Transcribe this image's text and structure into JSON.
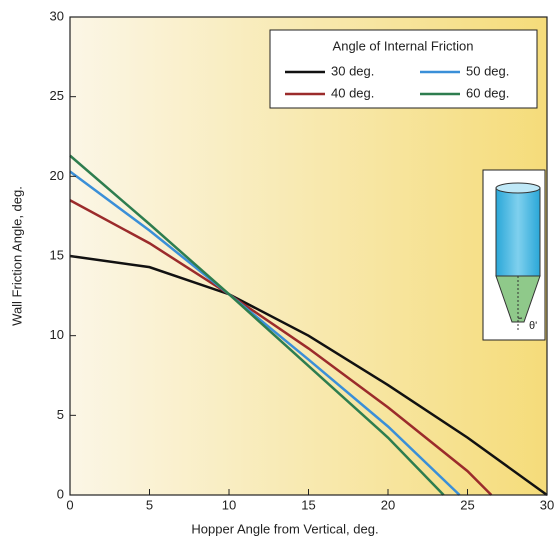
{
  "chart_data": {
    "type": "line",
    "xlabel": "Hopper Angle from Vertical, deg.",
    "ylabel": "Wall Friction Angle, deg.",
    "legend_title": "Angle of Internal Friction",
    "xlim": [
      0,
      30
    ],
    "xticks": [
      0,
      5,
      10,
      15,
      20,
      25,
      30
    ],
    "ylim": [
      0,
      30
    ],
    "yticks": [
      0,
      5,
      10,
      15,
      20,
      25,
      30
    ],
    "legend": "upper right",
    "series": [
      {
        "name": "30 deg.",
        "color": "#111111",
        "x": [
          0,
          5,
          10,
          15,
          20,
          25,
          30
        ],
        "values": [
          15,
          14.3,
          12.6,
          10,
          6.9,
          3.6,
          0
        ]
      },
      {
        "name": "40 deg.",
        "color": "#9b2b2b",
        "x": [
          0,
          5,
          10,
          15,
          20,
          25,
          26.5
        ],
        "values": [
          18.5,
          15.8,
          12.6,
          9.2,
          5.5,
          1.5,
          0
        ]
      },
      {
        "name": "50 deg.",
        "color": "#3a8fd8",
        "x": [
          0,
          5,
          10,
          15,
          20,
          24.5
        ],
        "values": [
          20.3,
          16.6,
          12.6,
          8.5,
          4.3,
          0
        ]
      },
      {
        "name": "60 deg.",
        "color": "#2e7d4f",
        "x": [
          0,
          5,
          10,
          15,
          20,
          23.5
        ],
        "values": [
          21.3,
          17.0,
          12.6,
          8.1,
          3.6,
          0
        ]
      }
    ]
  },
  "inset": {
    "label": "θ'"
  }
}
